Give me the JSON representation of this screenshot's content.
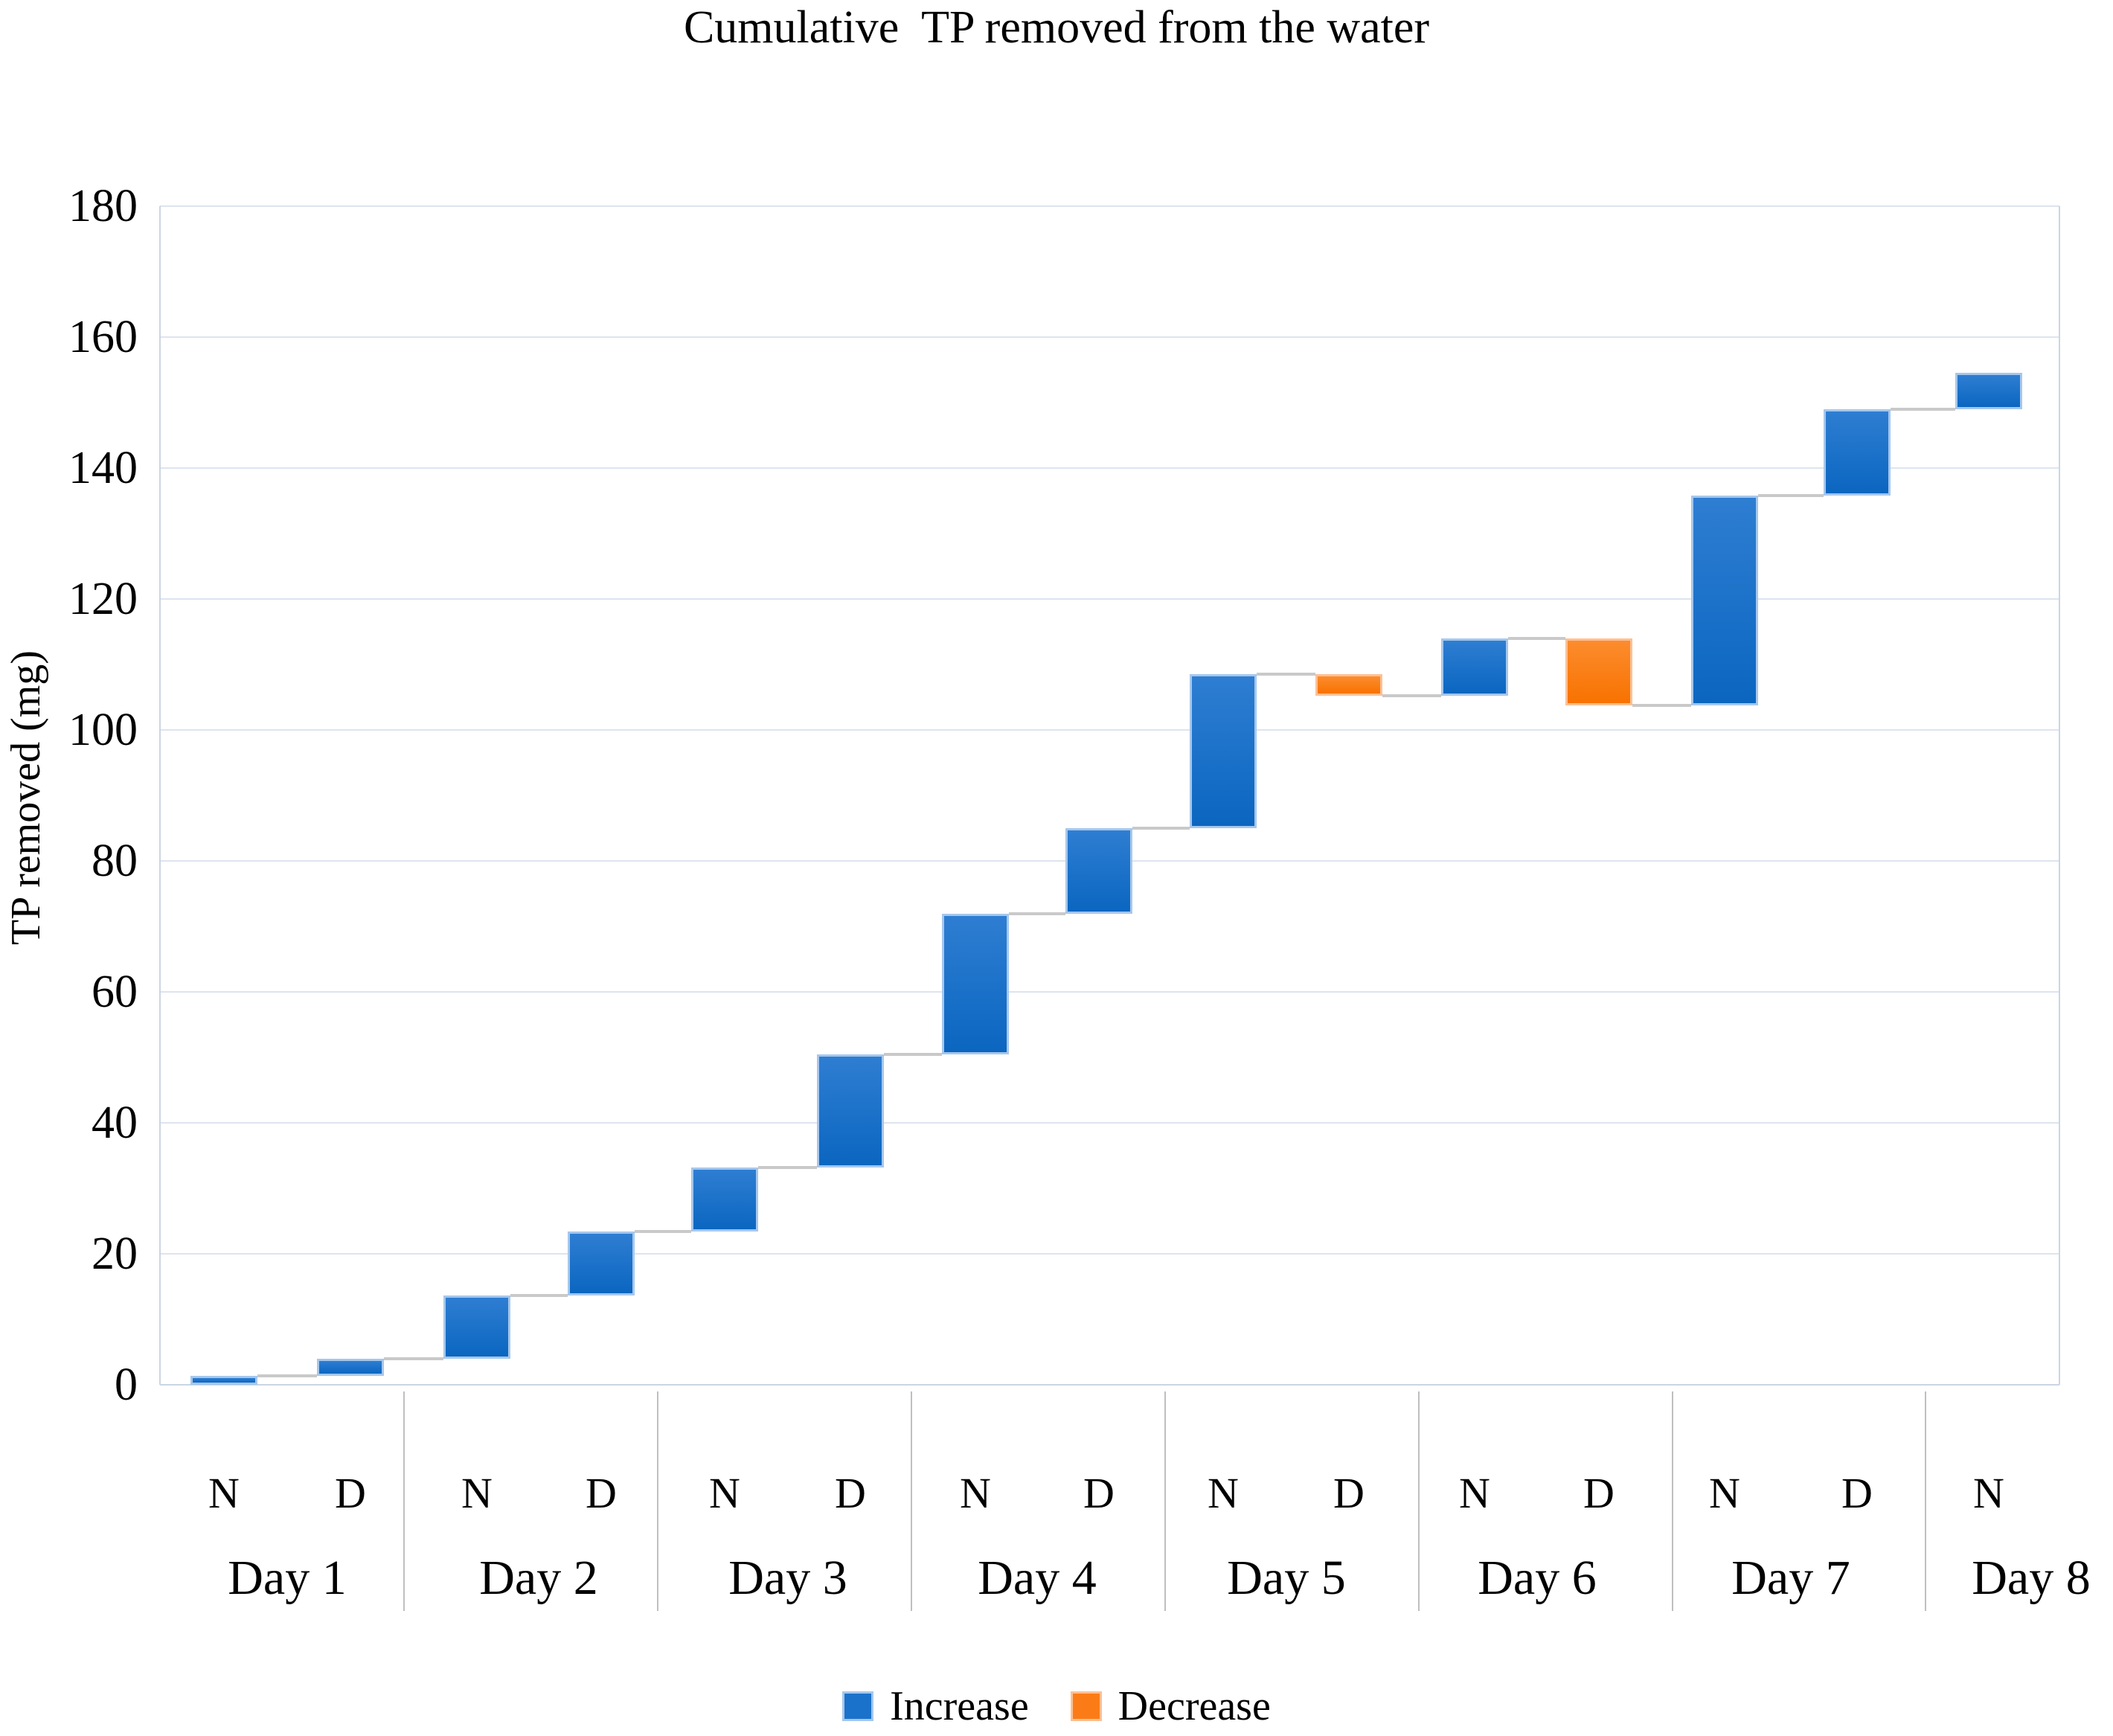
{
  "title": "Cumulative  TP removed from the water",
  "y_axis": {
    "title": "TP removed (mg)",
    "tick_labels": [
      "0",
      "20",
      "40",
      "60",
      "80",
      "100",
      "120",
      "140",
      "160",
      "180"
    ],
    "min": 0,
    "max": 180,
    "step": 20
  },
  "x_axis": {
    "days": [
      {
        "label": "Day 1",
        "periods": [
          "N",
          "D"
        ]
      },
      {
        "label": "Day 2",
        "periods": [
          "N",
          "D"
        ]
      },
      {
        "label": "Day 3",
        "periods": [
          "N",
          "D"
        ]
      },
      {
        "label": "Day 4",
        "periods": [
          "N",
          "D"
        ]
      },
      {
        "label": "Day 5",
        "periods": [
          "N",
          "D"
        ]
      },
      {
        "label": "Day 6",
        "periods": [
          "N",
          "D"
        ]
      },
      {
        "label": "Day 7",
        "periods": [
          "N",
          "D"
        ]
      },
      {
        "label": "Day 8",
        "periods": [
          "N"
        ]
      }
    ]
  },
  "legend": [
    {
      "label": "Increase",
      "color": "#1b72ca"
    },
    {
      "label": "Decrease",
      "color": "#fb7c17"
    }
  ],
  "colors": {
    "increase": "#0f6cc6",
    "increase_border": "#a6c7ec",
    "decrease": "#fb7c17",
    "decrease_border": "#fdc093",
    "gridline": "#dde4ef",
    "axis_border": "#ccd5e2",
    "connector": "#c9c9c9",
    "separator": "#bfbfbf",
    "text": "#000000"
  },
  "chart_data": {
    "type": "bar",
    "subtype": "waterfall",
    "title": "Cumulative  TP removed from the water",
    "xlabel": "",
    "ylabel": "TP removed (mg)",
    "ylim": [
      0,
      180
    ],
    "grid": true,
    "legend_position": "bottom",
    "unit": "mg",
    "categories": [
      "Day 1 N",
      "Day 1 D",
      "Day 2 N",
      "Day 2 D",
      "Day 3 N",
      "Day 3 D",
      "Day 4 N",
      "Day 4 D",
      "Day 5 N",
      "Day 5 D",
      "Day 6 N",
      "Day 6 D",
      "Day 7 N",
      "Day 7 D",
      "Day 8 N"
    ],
    "segments": [
      {
        "day": "Day 1",
        "period": "N",
        "start": 0,
        "end": 1.4,
        "change": 1.4,
        "direction": "increase"
      },
      {
        "day": "Day 1",
        "period": "D",
        "start": 1.4,
        "end": 4,
        "change": 2.6,
        "direction": "increase"
      },
      {
        "day": "Day 2",
        "period": "N",
        "start": 4,
        "end": 13.6,
        "change": 9.6,
        "direction": "increase"
      },
      {
        "day": "Day 2",
        "period": "D",
        "start": 13.6,
        "end": 23.4,
        "change": 9.8,
        "direction": "increase"
      },
      {
        "day": "Day 3",
        "period": "N",
        "start": 23.4,
        "end": 33.2,
        "change": 9.8,
        "direction": "increase"
      },
      {
        "day": "Day 3",
        "period": "D",
        "start": 33.2,
        "end": 50.5,
        "change": 17.3,
        "direction": "increase"
      },
      {
        "day": "Day 4",
        "period": "N",
        "start": 50.5,
        "end": 71.9,
        "change": 21.4,
        "direction": "increase"
      },
      {
        "day": "Day 4",
        "period": "D",
        "start": 71.9,
        "end": 85,
        "change": 13.1,
        "direction": "increase"
      },
      {
        "day": "Day 5",
        "period": "N",
        "start": 85,
        "end": 108.5,
        "change": 23.5,
        "direction": "increase"
      },
      {
        "day": "Day 5",
        "period": "D",
        "start": 108.5,
        "end": 105.2,
        "change": -3.3,
        "direction": "decrease"
      },
      {
        "day": "Day 6",
        "period": "N",
        "start": 105.2,
        "end": 114,
        "change": 8.8,
        "direction": "increase"
      },
      {
        "day": "Day 6",
        "period": "D",
        "start": 114,
        "end": 103.8,
        "change": -10.2,
        "direction": "decrease"
      },
      {
        "day": "Day 7",
        "period": "N",
        "start": 103.8,
        "end": 135.8,
        "change": 32,
        "direction": "increase"
      },
      {
        "day": "Day 7",
        "period": "D",
        "start": 135.8,
        "end": 149,
        "change": 13.2,
        "direction": "increase"
      },
      {
        "day": "Day 8",
        "period": "N",
        "start": 149,
        "end": 154.5,
        "change": 5.5,
        "direction": "increase"
      }
    ]
  }
}
